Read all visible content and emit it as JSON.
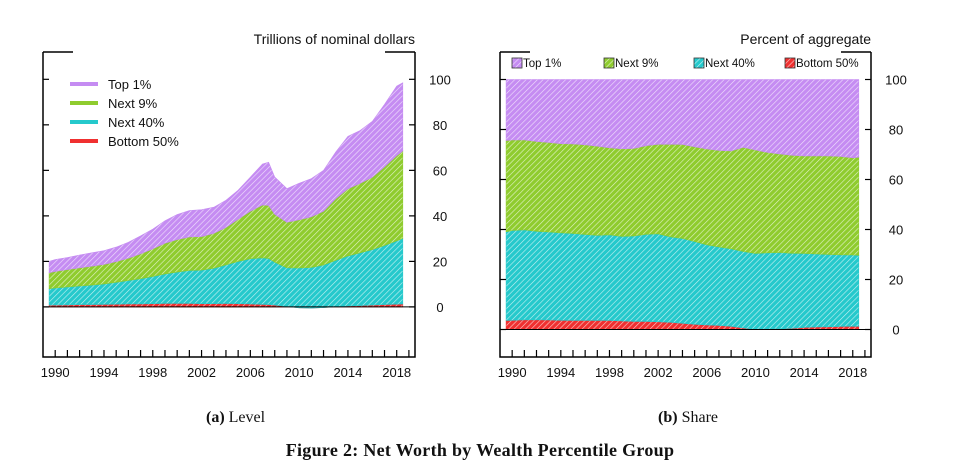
{
  "figure": {
    "caption": "Figure 2: Net Worth by Wealth Percentile Group",
    "panel_a": {
      "tag": "(a)",
      "label": "Level"
    },
    "panel_b": {
      "tag": "(b)",
      "label": "Share"
    }
  },
  "colors": {
    "top1": "#c58cf2",
    "next9": "#8fcc2e",
    "next40": "#25c9cc",
    "bottom50": "#f03030"
  },
  "chart_data": [
    {
      "type": "area",
      "stacked": true,
      "title": "Trillions of nominal dollars",
      "xlim": [
        1989,
        2019.5
      ],
      "ylim": [
        -22,
        112
      ],
      "x_ticks": [
        1990,
        1994,
        1998,
        2002,
        2006,
        2010,
        2014,
        2018
      ],
      "y_ticks": [
        0,
        20,
        40,
        60,
        80,
        100
      ],
      "y_axis_side": "right",
      "legend": {
        "placement": "top-left",
        "entries": [
          "Top 1%",
          "Next 9%",
          "Next 40%",
          "Bottom 50%"
        ]
      },
      "x": [
        1989.5,
        1990,
        1991,
        1992,
        1993,
        1994,
        1995,
        1996,
        1997,
        1998,
        1999,
        2000,
        2001,
        2002,
        2003,
        2004,
        2005,
        2006,
        2007,
        2007.5,
        2008,
        2009,
        2010,
        2011,
        2012,
        2013,
        2014,
        2015,
        2016,
        2017,
        2018,
        2018.5
      ],
      "series": [
        {
          "name": "Bottom 50%",
          "values": [
            0.8,
            0.8,
            0.9,
            1.0,
            1.0,
            1.1,
            1.2,
            1.3,
            1.3,
            1.4,
            1.5,
            1.5,
            1.5,
            1.4,
            1.4,
            1.5,
            1.4,
            1.3,
            1.1,
            1.0,
            0.8,
            0.2,
            -0.4,
            -0.5,
            -0.3,
            0.1,
            0.4,
            0.6,
            0.8,
            1.0,
            1.2,
            1.3
          ]
        },
        {
          "name": "Next 40%",
          "values": [
            7.2,
            7.5,
            7.9,
            8.2,
            8.6,
            9.0,
            9.6,
            10.3,
            11.1,
            12.0,
            13.0,
            13.8,
            14.5,
            14.8,
            15.6,
            17.0,
            18.6,
            19.9,
            20.5,
            20.3,
            18.9,
            17.0,
            17.5,
            17.8,
            18.7,
            20.4,
            22.0,
            23.2,
            24.4,
            26.0,
            27.8,
            28.8
          ]
        },
        {
          "name": "Next 9%",
          "values": [
            7.0,
            7.3,
            7.6,
            8.0,
            8.3,
            8.6,
            9.1,
            9.8,
            10.9,
            12.1,
            13.5,
            14.3,
            14.7,
            14.7,
            15.3,
            16.4,
            18.5,
            20.8,
            23.2,
            23.3,
            21.0,
            20.0,
            21.2,
            22.3,
            23.6,
            27.0,
            29.5,
            30.5,
            31.8,
            34.5,
            37.5,
            38.4
          ]
        },
        {
          "name": "Top 1%",
          "values": [
            5.0,
            5.2,
            5.3,
            5.6,
            5.9,
            6.0,
            6.4,
            7.0,
            7.9,
            8.7,
            9.9,
            11.0,
            11.6,
            11.8,
            11.5,
            12.0,
            12.8,
            15.0,
            18.0,
            19.0,
            16.4,
            14.8,
            16.0,
            16.8,
            18.0,
            20.5,
            23.0,
            23.2,
            24.5,
            27.5,
            30.5,
            30.0
          ]
        }
      ]
    },
    {
      "type": "area",
      "stacked": true,
      "title": "Percent of aggregate",
      "xlim": [
        1989,
        2019.5
      ],
      "ylim": [
        -11,
        111
      ],
      "x_ticks": [
        1990,
        1994,
        1998,
        2002,
        2006,
        2010,
        2014,
        2018
      ],
      "y_ticks": [
        0,
        20,
        40,
        60,
        80,
        100
      ],
      "y_axis_side": "right",
      "legend": {
        "placement": "top",
        "entries": [
          "Top 1%",
          "Next 9%",
          "Next 40%",
          "Bottom 50%"
        ]
      },
      "x": [
        1989.5,
        1990,
        1991,
        1992,
        1993,
        1994,
        1995,
        1996,
        1997,
        1998,
        1999,
        2000,
        2001,
        2002,
        2003,
        2004,
        2005,
        2006,
        2007,
        2008,
        2009,
        2010,
        2011,
        2012,
        2013,
        2014,
        2015,
        2016,
        2017,
        2018,
        2018.5
      ],
      "series": [
        {
          "name": "Bottom 50%",
          "values": [
            3.6,
            3.7,
            3.9,
            3.9,
            3.8,
            3.7,
            3.6,
            3.6,
            3.7,
            3.6,
            3.4,
            3.2,
            3.2,
            3.1,
            2.9,
            2.5,
            2.1,
            1.8,
            1.6,
            1.3,
            0.6,
            0.1,
            0.2,
            0.3,
            0.5,
            0.8,
            1.0,
            1.1,
            1.2,
            1.3,
            1.3
          ]
        },
        {
          "name": "Next 40%",
          "values": [
            35.5,
            35.9,
            36.0,
            35.4,
            35.2,
            35.0,
            34.8,
            34.4,
            34.0,
            34.3,
            33.8,
            34.2,
            34.9,
            35.2,
            34.2,
            33.9,
            33.1,
            32.1,
            31.4,
            31.0,
            30.6,
            30.3,
            30.5,
            30.5,
            30.0,
            29.6,
            29.2,
            28.9,
            28.7,
            28.5,
            28.4
          ]
        },
        {
          "name": "Next 9%",
          "values": [
            36.5,
            36.2,
            35.9,
            35.9,
            35.8,
            35.6,
            35.8,
            35.9,
            35.6,
            34.8,
            35.1,
            35.0,
            35.4,
            35.8,
            37.0,
            37.6,
            37.9,
            38.3,
            38.6,
            39.1,
            41.7,
            41.4,
            40.1,
            39.4,
            39.2,
            39.0,
            39.2,
            39.4,
            39.3,
            38.9,
            39.2
          ]
        },
        {
          "name": "Top 1%",
          "values": [
            24.4,
            24.2,
            24.2,
            24.8,
            25.2,
            25.7,
            25.8,
            26.1,
            26.7,
            27.3,
            27.7,
            27.6,
            26.5,
            25.9,
            25.9,
            26.0,
            26.9,
            27.8,
            28.4,
            28.6,
            27.1,
            28.2,
            29.2,
            29.8,
            30.3,
            30.6,
            30.6,
            30.6,
            30.8,
            31.3,
            31.1
          ]
        }
      ]
    }
  ]
}
